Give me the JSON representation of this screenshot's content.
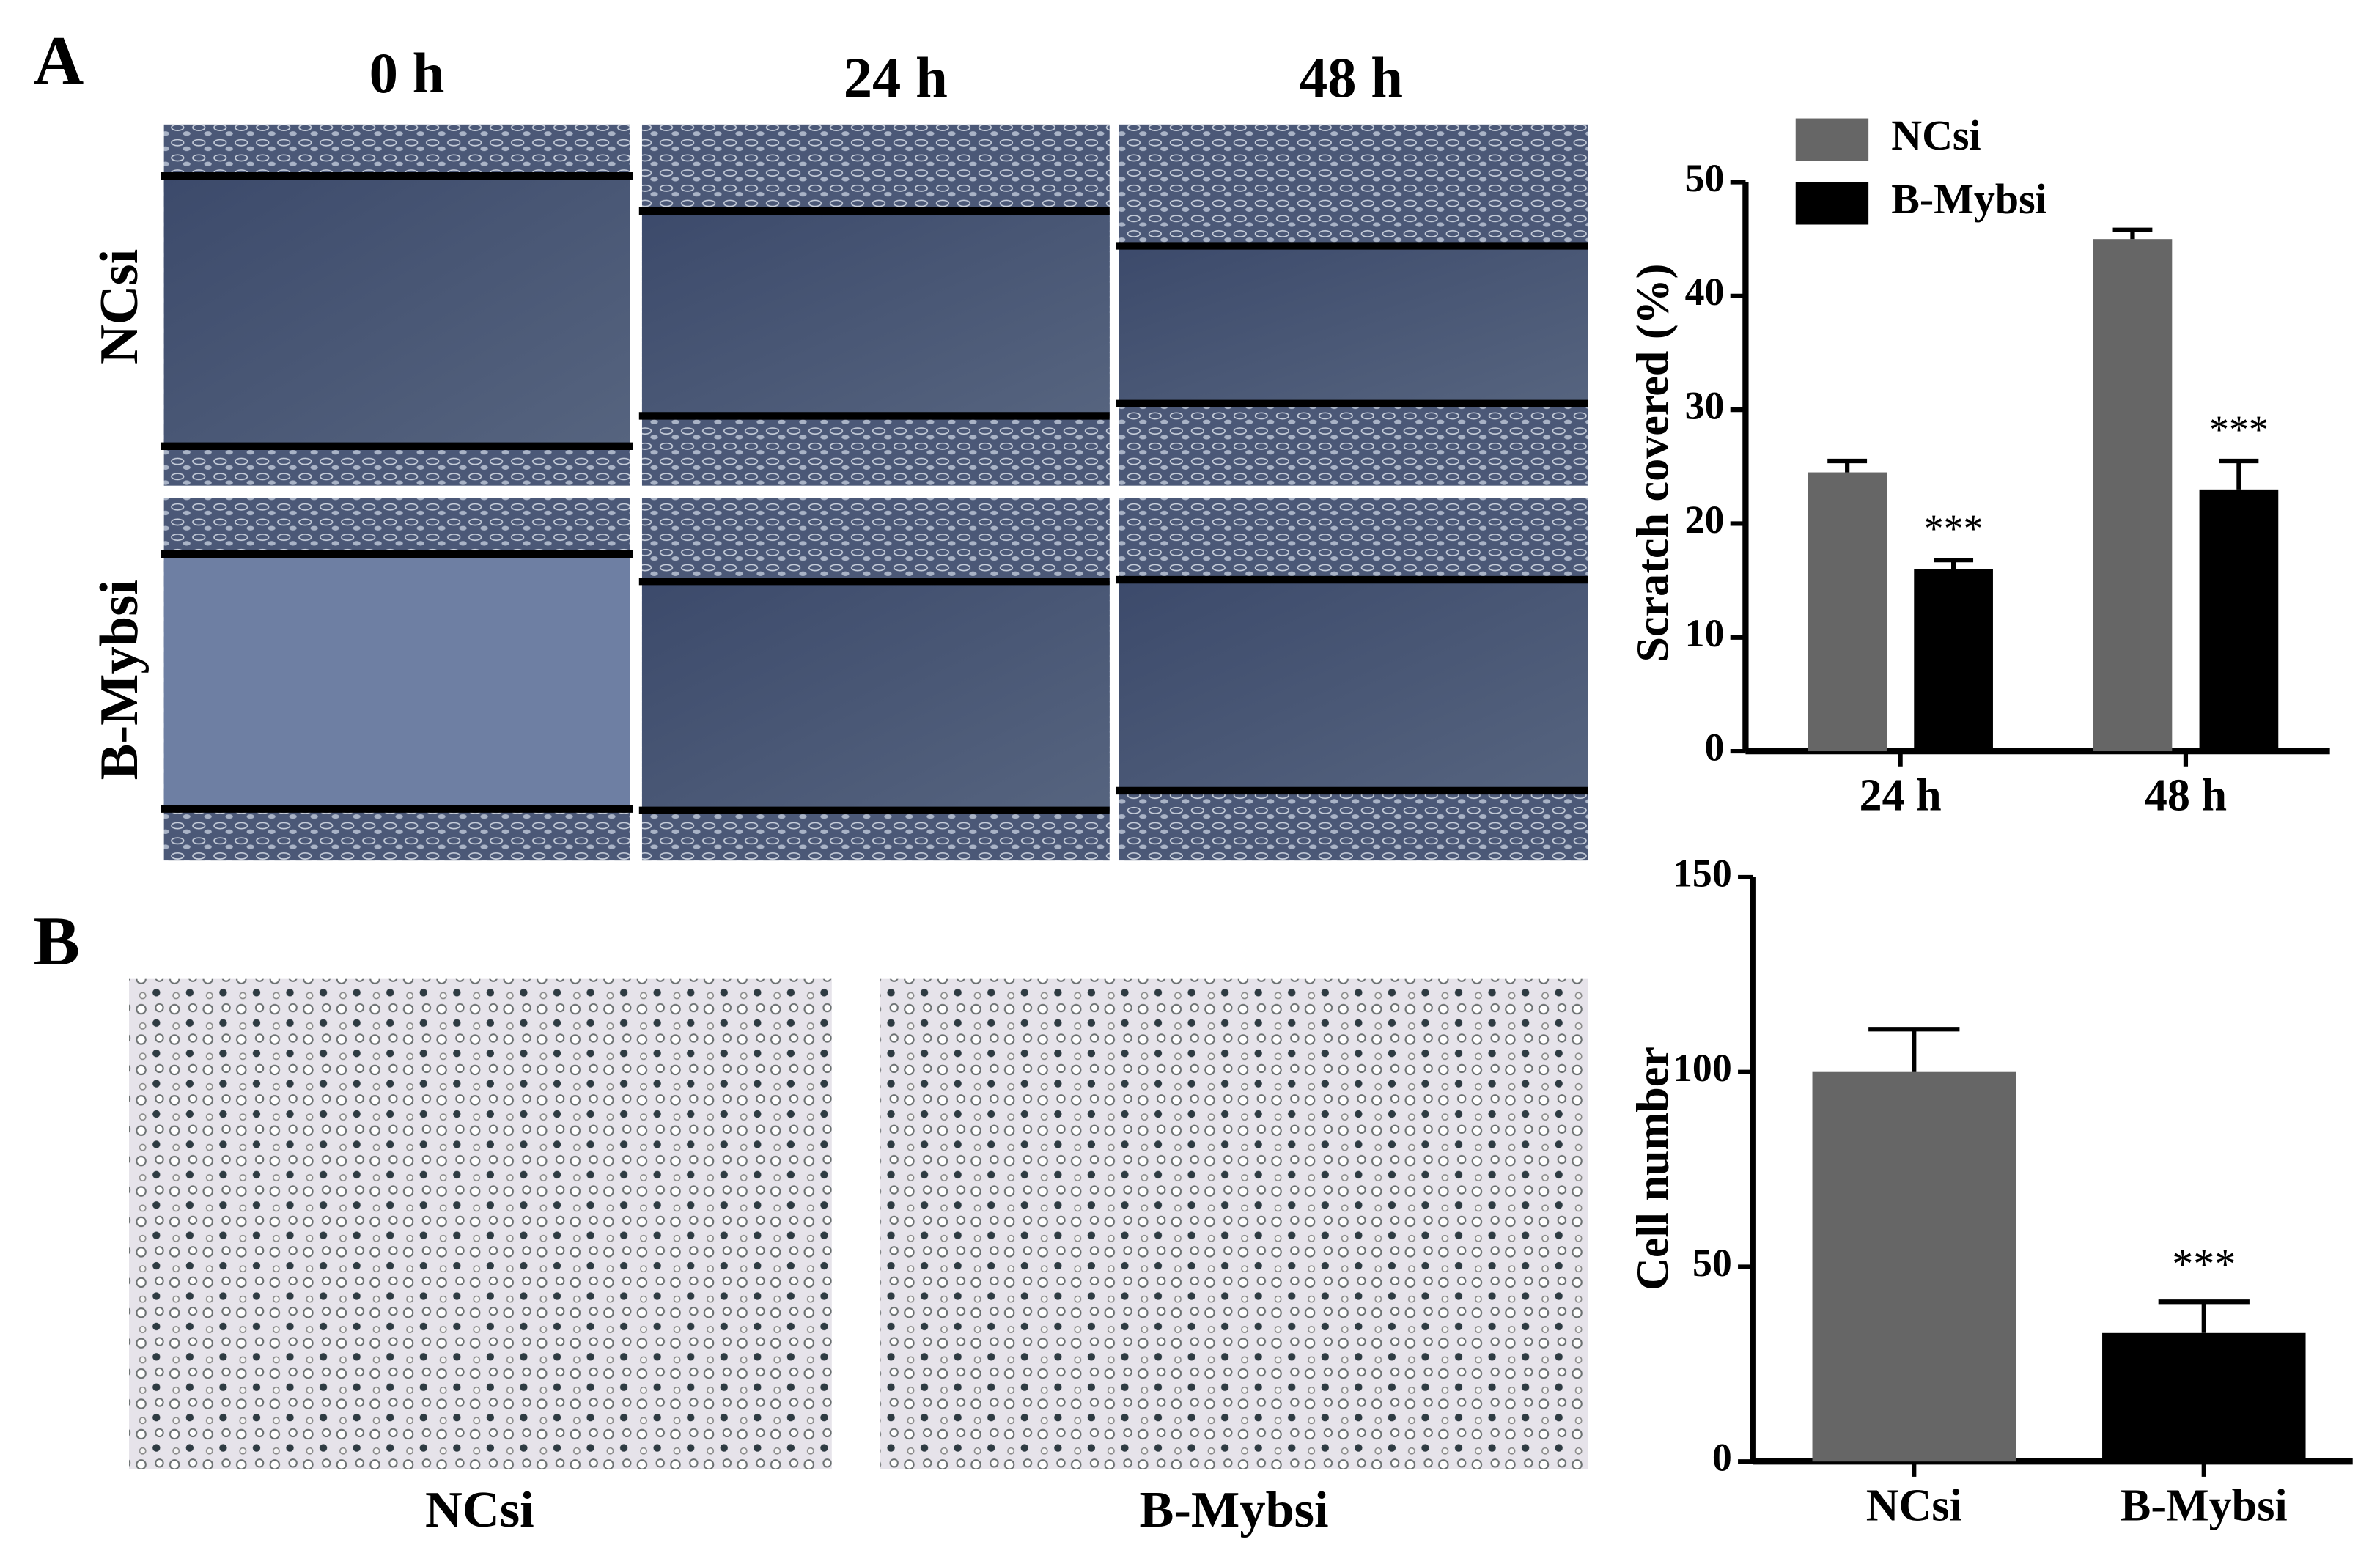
{
  "figure": {
    "panel_labels": [
      "A",
      "B"
    ],
    "scratch_columns": [
      "0 h",
      "24 h",
      "48 h"
    ],
    "scratch_rows": [
      "NCsi",
      "B-Mybsi"
    ],
    "transwell_captions": [
      "NCsi",
      "B-Mybsi"
    ]
  },
  "chart_data": [
    {
      "type": "grouped_bar",
      "y_label": "Scratch covered (%)",
      "categories": [
        "24 h",
        "48 h"
      ],
      "series": [
        {
          "name": "NCsi",
          "color": "#666666",
          "values": [
            24.5,
            45
          ],
          "errors": [
            1,
            0.8
          ],
          "significance": [
            null,
            null
          ]
        },
        {
          "name": "B-Mybsi",
          "color": "#000000",
          "values": [
            16,
            23
          ],
          "errors": [
            0.8,
            2.5
          ],
          "significance": [
            "***",
            "***"
          ]
        }
      ],
      "ylim": [
        0,
        50
      ],
      "yticks": [
        0,
        10,
        20,
        30,
        40,
        50
      ],
      "legend": "upper-left"
    },
    {
      "type": "bar",
      "y_label": "Cell number",
      "categories": [
        "NCsi",
        "B-Mybsi"
      ],
      "values": [
        100,
        33
      ],
      "errors": [
        11,
        8
      ],
      "colors": [
        "#666666",
        "#000000"
      ],
      "significance": [
        null,
        "***"
      ],
      "ylim": [
        0,
        150
      ],
      "yticks": [
        0,
        50,
        100,
        150
      ]
    }
  ]
}
